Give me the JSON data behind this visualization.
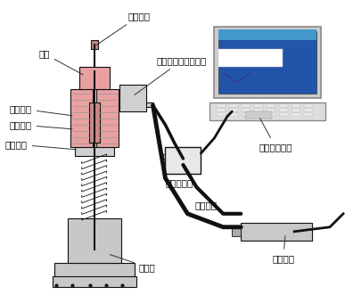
{
  "title": "",
  "bg_color": "#ffffff",
  "labels": {
    "zhongxin_liangan": "中心连杆",
    "dingmu": "顶母",
    "danti_shuangliang": "单体双量程力传感器",
    "lianjie_luomu": "连接螺母",
    "tisheng_yougang": "提升油缸",
    "yougang_zhizuo": "油缸支座",
    "shuju_caijiqj": "数据采集器",
    "yeya_yuguan": "液压油管",
    "shuju_caijizd": "数据采集终端",
    "anquanfa": "安全阀",
    "shoudong_youbeng": "手动油泵"
  },
  "arrow_color": "#333333",
  "line_color": "#111111",
  "valve_body_color": "#c8c8c8",
  "cylinder_color": "#e8a0a0",
  "laptop_screen_color": "#4488bb",
  "text_color": "#000000",
  "font_size": 7.5
}
